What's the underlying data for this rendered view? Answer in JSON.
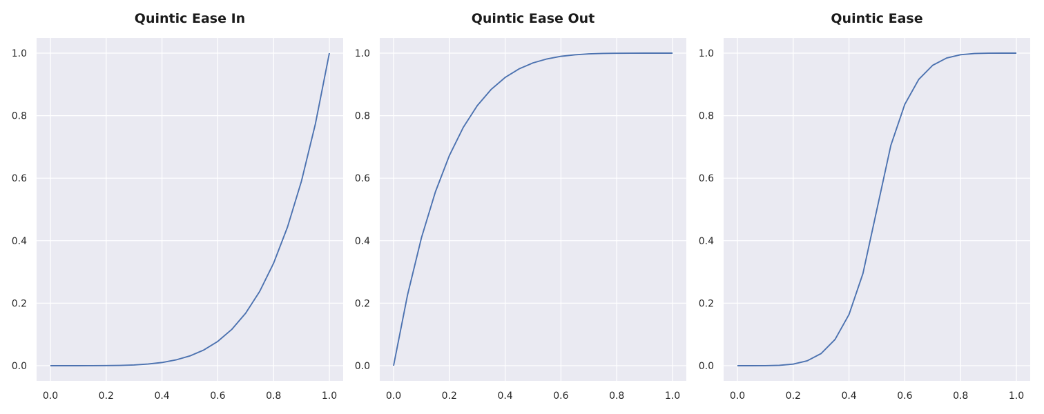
{
  "figure": {
    "background": "#ffffff",
    "axes_background": "#EAEAF2",
    "grid_color": "#ffffff",
    "line_color": "#4C72B0"
  },
  "chart_data": [
    {
      "type": "line",
      "title": "Quintic Ease In",
      "xlabel": "",
      "ylabel": "",
      "xlim": [
        0.0,
        1.0
      ],
      "ylim": [
        0.0,
        1.0
      ],
      "grid": true,
      "legend": "none",
      "xticks": [
        "0.0",
        "0.2",
        "0.4",
        "0.6",
        "0.8",
        "1.0"
      ],
      "yticks": [
        "0.0",
        "0.2",
        "0.4",
        "0.6",
        "0.8",
        "1.0"
      ],
      "series": [
        {
          "color": "#4C72B0",
          "x": [
            0.0,
            0.05,
            0.1,
            0.15,
            0.2,
            0.25,
            0.3,
            0.35,
            0.4,
            0.45,
            0.5,
            0.55,
            0.6,
            0.65,
            0.7,
            0.75,
            0.8,
            0.85,
            0.9,
            0.95,
            1.0
          ],
          "y": [
            0.0,
            0.0,
            0.0,
            0.0001,
            0.0003,
            0.001,
            0.0024,
            0.0053,
            0.0102,
            0.0185,
            0.0313,
            0.0503,
            0.0778,
            0.116,
            0.1681,
            0.2373,
            0.3277,
            0.4437,
            0.5905,
            0.7738,
            1.0
          ]
        }
      ]
    },
    {
      "type": "line",
      "title": "Quintic Ease Out",
      "xlabel": "",
      "ylabel": "",
      "xlim": [
        0.0,
        1.0
      ],
      "ylim": [
        0.0,
        1.0
      ],
      "grid": true,
      "legend": "none",
      "xticks": [
        "0.0",
        "0.2",
        "0.4",
        "0.6",
        "0.8",
        "1.0"
      ],
      "yticks": [
        "0.0",
        "0.2",
        "0.4",
        "0.6",
        "0.8",
        "1.0"
      ],
      "series": [
        {
          "color": "#4C72B0",
          "x": [
            0.0,
            0.05,
            0.1,
            0.15,
            0.2,
            0.25,
            0.3,
            0.35,
            0.4,
            0.45,
            0.5,
            0.55,
            0.6,
            0.65,
            0.7,
            0.75,
            0.8,
            0.85,
            0.9,
            0.95,
            1.0
          ],
          "y": [
            0.0,
            0.2262,
            0.4095,
            0.5563,
            0.6723,
            0.7627,
            0.8319,
            0.884,
            0.9222,
            0.9497,
            0.9688,
            0.9815,
            0.9898,
            0.9947,
            0.9976,
            0.999,
            0.9997,
            0.9999,
            1.0,
            1.0,
            1.0
          ]
        }
      ]
    },
    {
      "type": "line",
      "title": "Quintic Ease",
      "xlabel": "",
      "ylabel": "",
      "xlim": [
        0.0,
        1.0
      ],
      "ylim": [
        0.0,
        1.0
      ],
      "grid": true,
      "legend": "none",
      "xticks": [
        "0.0",
        "0.2",
        "0.4",
        "0.6",
        "0.8",
        "1.0"
      ],
      "yticks": [
        "0.0",
        "0.2",
        "0.4",
        "0.6",
        "0.8",
        "1.0"
      ],
      "series": [
        {
          "color": "#4C72B0",
          "x": [
            0.0,
            0.05,
            0.1,
            0.15,
            0.2,
            0.25,
            0.3,
            0.35,
            0.4,
            0.45,
            0.5,
            0.55,
            0.6,
            0.65,
            0.7,
            0.75,
            0.8,
            0.85,
            0.9,
            0.95,
            1.0
          ],
          "y": [
            0.0,
            0.0,
            0.0002,
            0.0012,
            0.0051,
            0.0156,
            0.0389,
            0.084,
            0.1638,
            0.2952,
            0.5,
            0.7048,
            0.8362,
            0.916,
            0.9611,
            0.9844,
            0.9949,
            0.9988,
            0.9998,
            1.0,
            1.0
          ]
        }
      ]
    }
  ]
}
